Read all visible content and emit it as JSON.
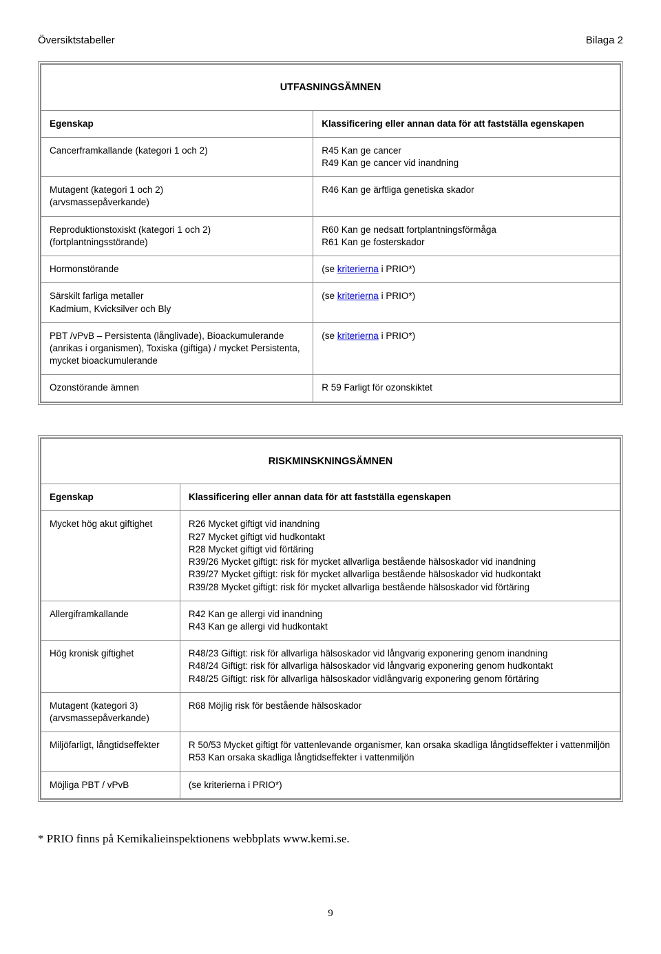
{
  "header": {
    "left": "Översiktstabeller",
    "right": "Bilaga 2"
  },
  "table1": {
    "title": "UTFASNINGSÄMNEN",
    "headerLeft": "Egenskap",
    "headerRight": "Klassificering eller annan data för att fastställa egenskapen",
    "rows": [
      {
        "left": [
          "Cancerframkallande (kategori 1 och 2)"
        ],
        "right": [
          "R45 Kan ge cancer",
          "R49 Kan ge cancer vid inandning"
        ]
      },
      {
        "left": [
          "Mutagent (kategori 1 och 2)",
          "(arvsmassepåverkande)"
        ],
        "right": [
          "R46 Kan ge ärftliga genetiska skador"
        ]
      },
      {
        "left": [
          "Reproduktionstoxiskt (kategori 1 och 2)",
          "(fortplantningsstörande)"
        ],
        "right": [
          "R60 Kan ge nedsatt fortplantningsförmåga",
          "R61 Kan ge fosterskador"
        ]
      },
      {
        "left": [
          "Hormonstörande"
        ],
        "right": [
          "(se ",
          {
            "link": "kriterierna"
          },
          " i PRIO*)"
        ]
      },
      {
        "left": [
          "Särskilt farliga metaller",
          "Kadmium, Kvicksilver och Bly"
        ],
        "right": [
          "(se ",
          {
            "link": "kriterierna"
          },
          " i PRIO*)"
        ]
      },
      {
        "left": [
          "PBT /vPvB – Persistenta (långlivade), Bioackumulerande (anrikas i organismen), Toxiska (giftiga) / mycket Persistenta, mycket bioackumulerande"
        ],
        "right": [
          "(se ",
          {
            "link": "kriterierna"
          },
          " i PRIO*)"
        ]
      },
      {
        "left": [
          "Ozonstörande ämnen"
        ],
        "right": [
          "R 59 Farligt för ozonskiktet"
        ]
      }
    ]
  },
  "table2": {
    "title": "RISKMINSKNINGSÄMNEN",
    "headerLeft": "Egenskap",
    "headerRight": "Klassificering eller annan data för att fastställa egenskapen",
    "rows": [
      {
        "left": [
          "Mycket hög akut giftighet"
        ],
        "right": [
          "R26 Mycket giftigt vid inandning",
          "R27 Mycket giftigt vid hudkontakt",
          "R28 Mycket giftigt vid förtäring",
          "R39/26 Mycket giftigt: risk för mycket allvarliga bestående hälsoskador vid inandning",
          "R39/27 Mycket giftigt: risk för mycket allvarliga bestående hälsoskador vid hudkontakt",
          "R39/28 Mycket giftigt: risk för mycket allvarliga bestående hälsoskador vid förtäring"
        ]
      },
      {
        "left": [
          "Allergiframkallande"
        ],
        "right": [
          "R42 Kan ge allergi vid inandning",
          "R43 Kan ge allergi vid hudkontakt"
        ]
      },
      {
        "left": [
          "Hög kronisk giftighet"
        ],
        "right": [
          "R48/23 Giftigt: risk för allvarliga hälsoskador vid långvarig exponering genom inandning",
          "R48/24 Giftigt: risk för allvarliga hälsoskador vid långvarig exponering genom hudkontakt",
          "R48/25 Giftigt: risk för allvarliga hälsoskador vidlångvarig exponering genom förtäring"
        ]
      },
      {
        "left": [
          "Mutagent (kategori 3)",
          "(arvsmassepåverkande)"
        ],
        "right": [
          "R68 Möjlig risk för bestående hälsoskador"
        ]
      },
      {
        "left": [
          "Miljöfarligt, långtidseffekter"
        ],
        "right": [
          "R 50/53 Mycket giftigt för vattenlevande organismer, kan orsaka skadliga långtidseffekter i vattenmiljön",
          "R53 Kan orsaka skadliga långtidseffekter i vattenmiljön"
        ]
      },
      {
        "left": [
          "Möjliga PBT / vPvB"
        ],
        "right": [
          "(se kriterierna i PRIO*)"
        ]
      }
    ]
  },
  "footer": "* PRIO finns på Kemikalieinspektionens webbplats www.kemi.se.",
  "pageNumber": "9"
}
